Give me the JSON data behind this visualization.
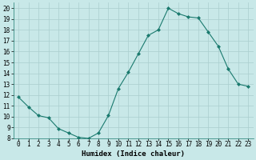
{
  "x": [
    0,
    1,
    2,
    3,
    4,
    5,
    6,
    7,
    8,
    9,
    10,
    11,
    12,
    13,
    14,
    15,
    16,
    17,
    18,
    19,
    20,
    21,
    22,
    23
  ],
  "y": [
    11.8,
    10.9,
    10.1,
    9.9,
    8.9,
    8.5,
    8.1,
    8.0,
    8.5,
    10.1,
    12.6,
    14.1,
    15.8,
    17.5,
    18.0,
    20.0,
    19.5,
    19.2,
    19.1,
    17.8,
    16.5,
    14.4,
    13.0,
    12.8
  ],
  "line_color": "#1a7a6e",
  "marker": "D",
  "marker_size": 2.0,
  "bg_color": "#c8e8e8",
  "grid_color": "#aacece",
  "xlabel": "Humidex (Indice chaleur)",
  "xlim": [
    -0.5,
    23.5
  ],
  "ylim": [
    8,
    20.5
  ],
  "yticks": [
    8,
    9,
    10,
    11,
    12,
    13,
    14,
    15,
    16,
    17,
    18,
    19,
    20
  ],
  "xticks": [
    0,
    1,
    2,
    3,
    4,
    5,
    6,
    7,
    8,
    9,
    10,
    11,
    12,
    13,
    14,
    15,
    16,
    17,
    18,
    19,
    20,
    21,
    22,
    23
  ],
  "tick_fontsize": 5.5,
  "label_fontsize": 6.5,
  "linewidth": 0.8
}
